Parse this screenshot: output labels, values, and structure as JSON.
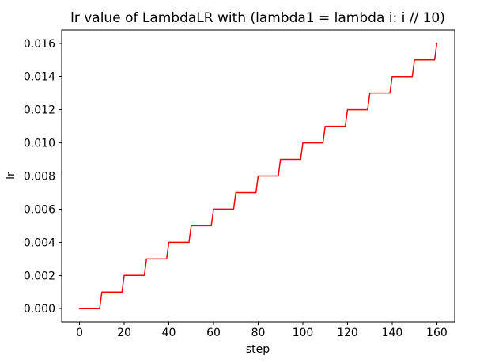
{
  "figure": {
    "background": "#ffffff",
    "spine_color": "#000000",
    "text_color": "#000000"
  },
  "chart_data": {
    "type": "line",
    "title": "lr value of LambdaLR with (lambda1 = lambda i: i // 10)",
    "xlabel": "step",
    "ylabel": "lr",
    "line_color": "#ff0000",
    "line_width": 1.5,
    "grid": false,
    "legend": null,
    "x_range": [
      0,
      160
    ],
    "xlim": [
      -8,
      168
    ],
    "ylim": [
      -0.0008,
      0.0168
    ],
    "xticks": [
      0,
      20,
      40,
      60,
      80,
      100,
      120,
      140,
      160
    ],
    "xtick_labels": [
      "0",
      "20",
      "40",
      "60",
      "80",
      "100",
      "120",
      "140",
      "160"
    ],
    "yticks": [
      0.0,
      0.002,
      0.004,
      0.006,
      0.008,
      0.01,
      0.012,
      0.014,
      0.016
    ],
    "ytick_labels": [
      "0.000",
      "0.002",
      "0.004",
      "0.006",
      "0.008",
      "0.010",
      "0.012",
      "0.014",
      "0.016"
    ],
    "step_rule": "lr = 0.001 * (step // 10)",
    "segments": [
      [
        0,
        9,
        0.0
      ],
      [
        10,
        19,
        0.001
      ],
      [
        20,
        29,
        0.002
      ],
      [
        30,
        39,
        0.003
      ],
      [
        40,
        49,
        0.004
      ],
      [
        50,
        59,
        0.005
      ],
      [
        60,
        69,
        0.006
      ],
      [
        70,
        79,
        0.007
      ],
      [
        80,
        89,
        0.008
      ],
      [
        90,
        99,
        0.009
      ],
      [
        100,
        109,
        0.01
      ],
      [
        110,
        119,
        0.011
      ],
      [
        120,
        129,
        0.012
      ],
      [
        130,
        139,
        0.013
      ],
      [
        140,
        149,
        0.014
      ],
      [
        150,
        159,
        0.015
      ],
      [
        160,
        160,
        0.016
      ]
    ]
  }
}
